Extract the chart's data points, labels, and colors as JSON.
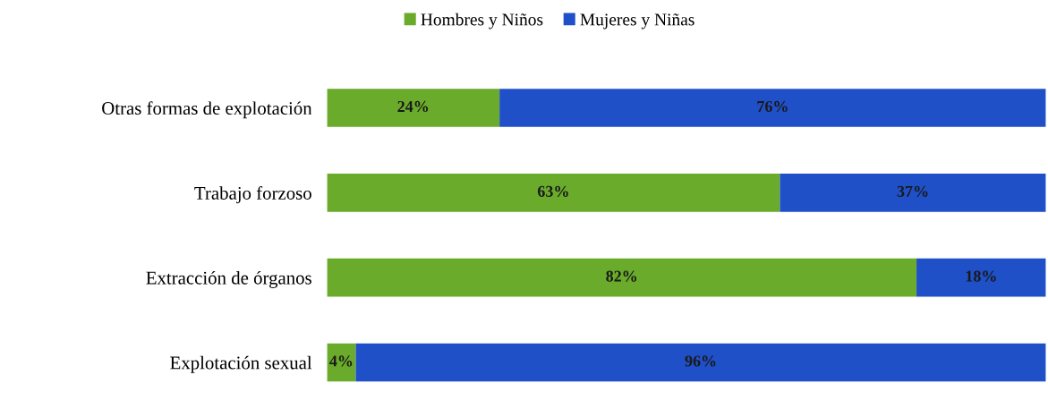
{
  "chart_data": {
    "type": "bar",
    "orientation": "horizontal",
    "stacked": true,
    "legend": "top",
    "grid": false,
    "tick_labels": "y",
    "categories": [
      "Otras formas de explotación",
      "Trabajo forzoso",
      "Extracción de órganos",
      "Explotación sexual"
    ],
    "series": [
      {
        "name": "Hombres y Niños",
        "color": "#6aab2b",
        "values": [
          24,
          63,
          82,
          4
        ],
        "value_labels": [
          "24%",
          "63%",
          "82%",
          "4%"
        ]
      },
      {
        "name": "Mujeres y Niñas",
        "color": "#1f50c8",
        "values": [
          76,
          37,
          18,
          96
        ],
        "value_labels": [
          "76%",
          "37%",
          "18%",
          "96%"
        ]
      }
    ]
  }
}
